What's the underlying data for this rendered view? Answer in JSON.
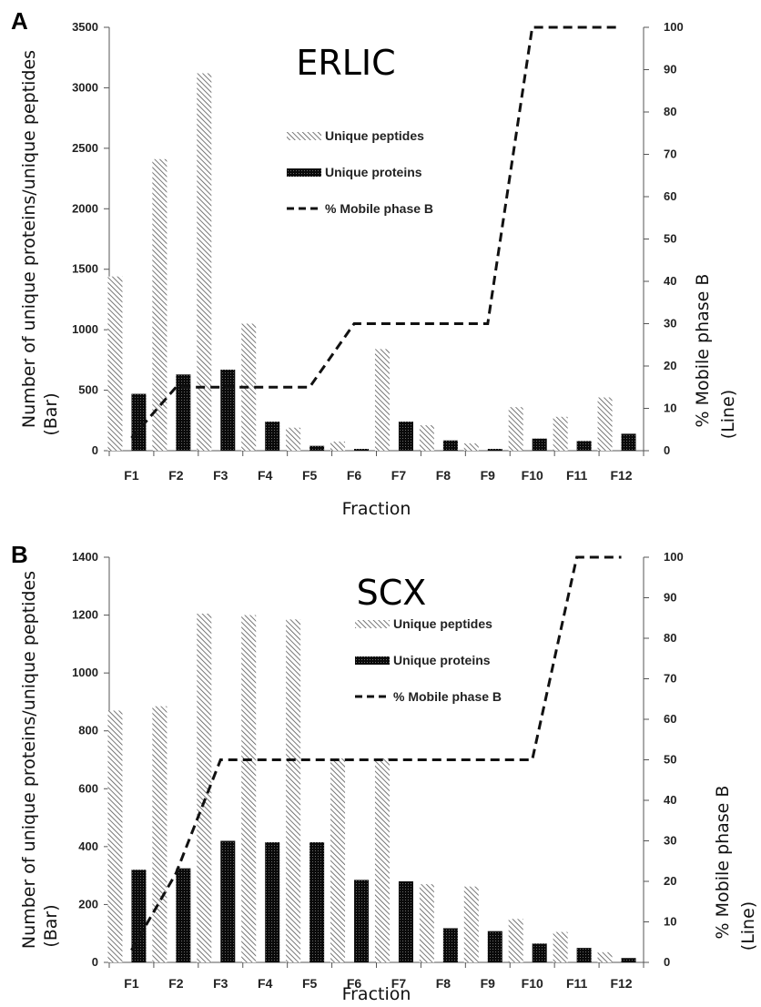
{
  "chart_data": [
    {
      "type": "bar",
      "panel": "A",
      "title": "ERLIC",
      "categories": [
        "F1",
        "F2",
        "F3",
        "F4",
        "F5",
        "F6",
        "F7",
        "F8",
        "F9",
        "F10",
        "F11",
        "F12"
      ],
      "series": [
        {
          "name": "Unique peptides",
          "values": [
            1440,
            2410,
            3120,
            1050,
            190,
            75,
            840,
            210,
            60,
            360,
            280,
            440
          ]
        },
        {
          "name": "Unique proteins",
          "values": [
            470,
            630,
            670,
            240,
            40,
            15,
            240,
            85,
            15,
            100,
            80,
            140
          ]
        }
      ],
      "line": {
        "name": "% Mobile phase B",
        "values": [
          3,
          15,
          15,
          15,
          15,
          30,
          30,
          30,
          30,
          100,
          100,
          100
        ],
        "axis": "right"
      },
      "xlabel": "Fraction",
      "ylabel": "Number of unique proteins/unique peptides",
      "ylabel2": "(Bar)",
      "y2label": "% Mobile phase B",
      "y2label2": "(Line)",
      "ylim": [
        0,
        3500
      ],
      "yticks": [
        0,
        500,
        1000,
        1500,
        2000,
        2500,
        3000,
        3500
      ],
      "y2lim": [
        0,
        100
      ],
      "y2ticks": [
        0,
        10,
        20,
        30,
        40,
        50,
        60,
        70,
        80,
        90,
        100
      ],
      "legend": "top-center"
    },
    {
      "type": "bar",
      "panel": "B",
      "title": "SCX",
      "categories": [
        "F1",
        "F2",
        "F3",
        "F4",
        "F5",
        "F6",
        "F7",
        "F8",
        "F9",
        "F10",
        "F11",
        "F12"
      ],
      "series": [
        {
          "name": "Unique peptides",
          "values": [
            870,
            885,
            1205,
            1200,
            1185,
            705,
            705,
            270,
            262,
            150,
            105,
            35
          ]
        },
        {
          "name": "Unique proteins",
          "values": [
            320,
            325,
            420,
            415,
            415,
            285,
            280,
            118,
            108,
            65,
            50,
            15
          ]
        }
      ],
      "line": {
        "name": "% Mobile phase B",
        "values": [
          3,
          22,
          50,
          50,
          50,
          50,
          50,
          50,
          50,
          50,
          100,
          100
        ],
        "axis": "right"
      },
      "xlabel": "Fraction",
      "ylabel": "Number of unique proteins/unique peptides",
      "ylabel2": "(Bar)",
      "y2label": "% Mobile phase B",
      "y2label2": "(Line)",
      "ylim": [
        0,
        1400
      ],
      "yticks": [
        0,
        200,
        400,
        600,
        800,
        1000,
        1200,
        1400
      ],
      "y2lim": [
        0,
        100
      ],
      "y2ticks": [
        0,
        10,
        20,
        30,
        40,
        50,
        60,
        70,
        80,
        90,
        100
      ],
      "legend": "top-center"
    }
  ]
}
